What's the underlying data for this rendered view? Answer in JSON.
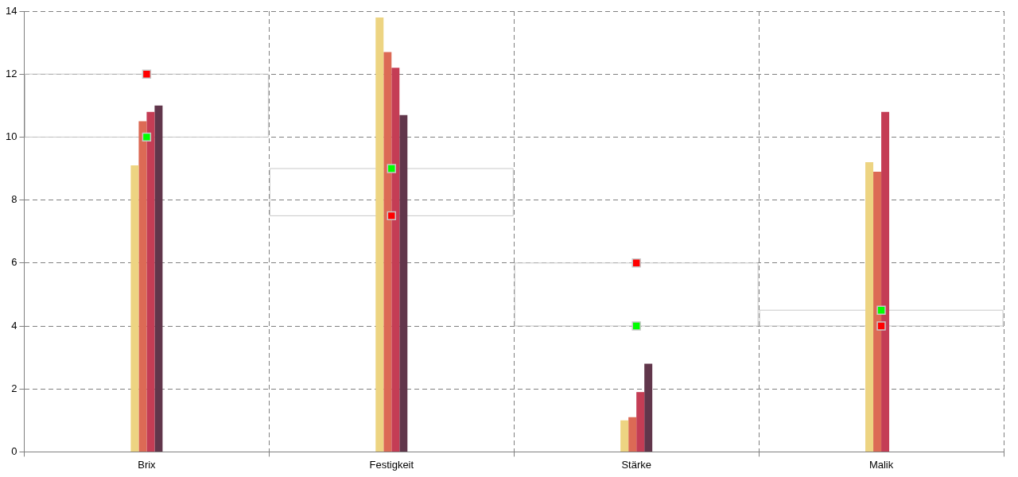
{
  "chart_data": {
    "type": "bar",
    "categories": [
      "Brix",
      "Festigkeit",
      "Stärke",
      "Malik"
    ],
    "series": [
      {
        "color": "#edd482",
        "values": [
          9.1,
          13.8,
          1.0,
          9.2
        ]
      },
      {
        "color": "#dc6a55",
        "values": [
          10.5,
          12.7,
          1.1,
          8.9
        ]
      },
      {
        "color": "#c43d55",
        "values": [
          10.8,
          12.2,
          1.9,
          10.8
        ]
      },
      {
        "color": "#61364b",
        "values": [
          11.0,
          10.7,
          2.8,
          0
        ]
      },
      {
        "type": "scatter",
        "color": "#ff0000",
        "x": [
          "Brix",
          "Festigkeit",
          "Stärke",
          "Malik"
        ],
        "values": [
          12,
          7.5,
          6,
          4
        ]
      },
      {
        "type": "scatter",
        "color": "#00ff00",
        "x": [
          "Brix",
          "Festigkeit",
          "Stärke",
          "Malik"
        ],
        "values": [
          10,
          9,
          4,
          4.5
        ]
      }
    ],
    "ylim": [
      0,
      14
    ],
    "yticks": [
      0,
      2,
      4,
      6,
      8,
      10,
      12,
      14
    ],
    "grid": true,
    "legend": false,
    "marker": "square"
  }
}
